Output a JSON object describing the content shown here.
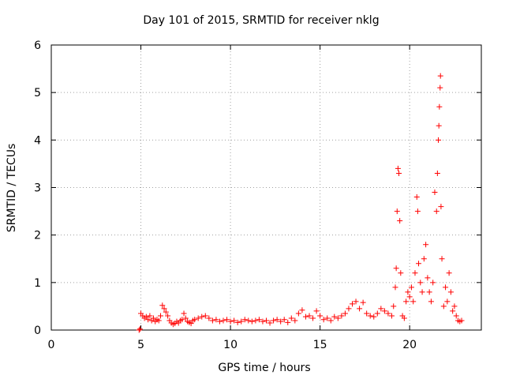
{
  "chart_data": {
    "type": "scatter",
    "title": "Day 101 of 2015, SRMTID for receiver nklg",
    "xlabel": "GPS time / hours",
    "ylabel": "SRMTID / TECUs",
    "xlim": [
      0,
      24
    ],
    "ylim": [
      0,
      6
    ],
    "xticks": [
      0,
      5,
      10,
      15,
      20
    ],
    "yticks": [
      0,
      1,
      2,
      3,
      4,
      5,
      6
    ],
    "grid": true,
    "marker": "+",
    "color": "#ff0000",
    "series": [
      {
        "name": "SRMTID",
        "points": [
          [
            4.9,
            0.0
          ],
          [
            4.95,
            0.02
          ],
          [
            5.0,
            0.35
          ],
          [
            5.1,
            0.3
          ],
          [
            5.2,
            0.25
          ],
          [
            5.3,
            0.28
          ],
          [
            5.4,
            0.22
          ],
          [
            5.5,
            0.3
          ],
          [
            5.6,
            0.2
          ],
          [
            5.7,
            0.25
          ],
          [
            5.8,
            0.18
          ],
          [
            5.9,
            0.22
          ],
          [
            6.0,
            0.2
          ],
          [
            6.1,
            0.3
          ],
          [
            6.2,
            0.52
          ],
          [
            6.3,
            0.45
          ],
          [
            6.4,
            0.38
          ],
          [
            6.5,
            0.3
          ],
          [
            6.6,
            0.2
          ],
          [
            6.7,
            0.15
          ],
          [
            6.8,
            0.12
          ],
          [
            6.9,
            0.14
          ],
          [
            7.0,
            0.18
          ],
          [
            7.1,
            0.15
          ],
          [
            7.2,
            0.2
          ],
          [
            7.3,
            0.22
          ],
          [
            7.4,
            0.35
          ],
          [
            7.5,
            0.25
          ],
          [
            7.6,
            0.18
          ],
          [
            7.7,
            0.16
          ],
          [
            7.8,
            0.14
          ],
          [
            7.9,
            0.2
          ],
          [
            8.0,
            0.22
          ],
          [
            8.2,
            0.25
          ],
          [
            8.4,
            0.28
          ],
          [
            8.6,
            0.3
          ],
          [
            8.8,
            0.25
          ],
          [
            9.0,
            0.2
          ],
          [
            9.2,
            0.22
          ],
          [
            9.4,
            0.18
          ],
          [
            9.6,
            0.2
          ],
          [
            9.8,
            0.22
          ],
          [
            10.0,
            0.18
          ],
          [
            10.2,
            0.2
          ],
          [
            10.4,
            0.16
          ],
          [
            10.6,
            0.18
          ],
          [
            10.8,
            0.22
          ],
          [
            11.0,
            0.2
          ],
          [
            11.2,
            0.18
          ],
          [
            11.4,
            0.2
          ],
          [
            11.6,
            0.22
          ],
          [
            11.8,
            0.18
          ],
          [
            12.0,
            0.2
          ],
          [
            12.2,
            0.15
          ],
          [
            12.4,
            0.2
          ],
          [
            12.6,
            0.22
          ],
          [
            12.8,
            0.18
          ],
          [
            13.0,
            0.22
          ],
          [
            13.2,
            0.16
          ],
          [
            13.4,
            0.25
          ],
          [
            13.6,
            0.2
          ],
          [
            13.8,
            0.35
          ],
          [
            14.0,
            0.42
          ],
          [
            14.2,
            0.28
          ],
          [
            14.4,
            0.3
          ],
          [
            14.6,
            0.25
          ],
          [
            14.8,
            0.4
          ],
          [
            15.0,
            0.3
          ],
          [
            15.2,
            0.22
          ],
          [
            15.4,
            0.25
          ],
          [
            15.6,
            0.2
          ],
          [
            15.8,
            0.28
          ],
          [
            16.0,
            0.25
          ],
          [
            16.2,
            0.3
          ],
          [
            16.4,
            0.35
          ],
          [
            16.6,
            0.45
          ],
          [
            16.8,
            0.55
          ],
          [
            17.0,
            0.6
          ],
          [
            17.2,
            0.45
          ],
          [
            17.4,
            0.58
          ],
          [
            17.6,
            0.35
          ],
          [
            17.8,
            0.3
          ],
          [
            18.0,
            0.28
          ],
          [
            18.2,
            0.35
          ],
          [
            18.4,
            0.45
          ],
          [
            18.6,
            0.4
          ],
          [
            18.8,
            0.35
          ],
          [
            19.0,
            0.3
          ],
          [
            19.1,
            0.5
          ],
          [
            19.2,
            0.9
          ],
          [
            19.25,
            1.3
          ],
          [
            19.3,
            2.5
          ],
          [
            19.35,
            3.4
          ],
          [
            19.4,
            3.3
          ],
          [
            19.45,
            2.3
          ],
          [
            19.5,
            1.2
          ],
          [
            19.6,
            0.3
          ],
          [
            19.7,
            0.25
          ],
          [
            19.8,
            0.6
          ],
          [
            19.9,
            0.8
          ],
          [
            20.0,
            0.7
          ],
          [
            20.1,
            0.9
          ],
          [
            20.2,
            0.6
          ],
          [
            20.3,
            1.2
          ],
          [
            20.4,
            2.8
          ],
          [
            20.45,
            2.5
          ],
          [
            20.5,
            1.4
          ],
          [
            20.6,
            1.0
          ],
          [
            20.7,
            0.8
          ],
          [
            20.8,
            1.5
          ],
          [
            20.9,
            1.8
          ],
          [
            21.0,
            1.1
          ],
          [
            21.1,
            0.8
          ],
          [
            21.2,
            0.6
          ],
          [
            21.3,
            1.0
          ],
          [
            21.4,
            2.9
          ],
          [
            21.5,
            2.5
          ],
          [
            21.55,
            3.3
          ],
          [
            21.6,
            4.0
          ],
          [
            21.63,
            4.3
          ],
          [
            21.66,
            4.7
          ],
          [
            21.7,
            5.1
          ],
          [
            21.72,
            5.35
          ],
          [
            21.75,
            2.6
          ],
          [
            21.8,
            1.5
          ],
          [
            21.9,
            0.5
          ],
          [
            22.0,
            0.9
          ],
          [
            22.1,
            0.6
          ],
          [
            22.2,
            1.2
          ],
          [
            22.3,
            0.8
          ],
          [
            22.4,
            0.4
          ],
          [
            22.5,
            0.5
          ],
          [
            22.6,
            0.3
          ],
          [
            22.7,
            0.2
          ],
          [
            22.8,
            0.18
          ],
          [
            22.9,
            0.2
          ]
        ]
      }
    ]
  }
}
